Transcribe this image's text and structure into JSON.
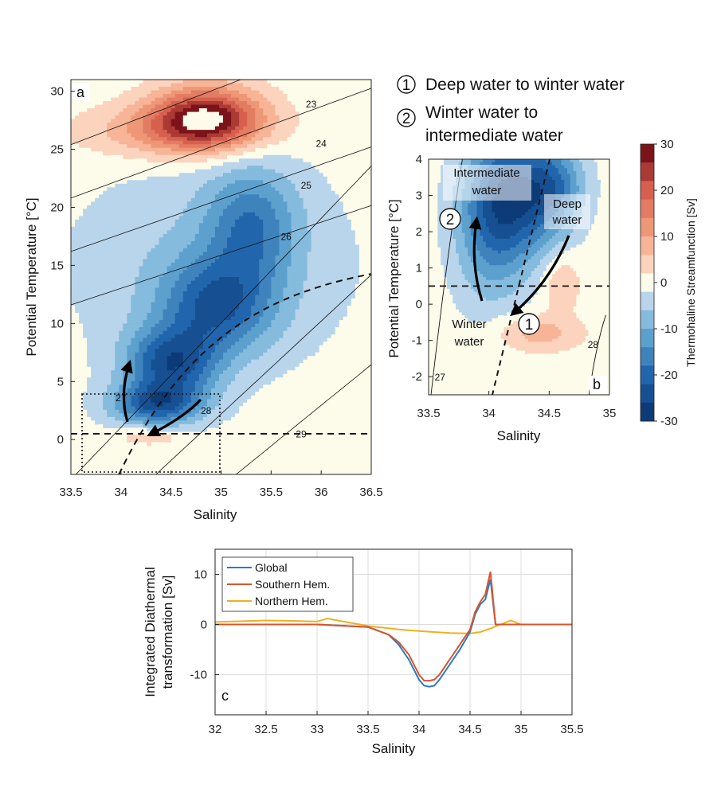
{
  "steps": [
    {
      "num": "1",
      "text": "Deep water to winter water"
    },
    {
      "num": "2",
      "text_line1": "Winter water to",
      "text_line2": "intermediate water"
    }
  ],
  "chart_data": [
    {
      "panel": "a",
      "type": "heatmap",
      "xlabel": "Salinity",
      "ylabel": "Potential Temperature [°C]",
      "xlim": [
        33.5,
        36.5
      ],
      "ylim": [
        -3,
        31
      ],
      "xticks": [
        "33.5",
        "34",
        "34.5",
        "35",
        "35.5",
        "36",
        "36.5"
      ],
      "yticks": [
        "0",
        "5",
        "10",
        "15",
        "20",
        "25",
        "30"
      ],
      "density_contours": [
        "23",
        "24",
        "25",
        "26",
        "27",
        "28",
        "29"
      ],
      "reference_line_temperature": 0.5,
      "blobs": [
        {
          "s": 34.85,
          "t": 27.8,
          "rs": 0.55,
          "rt": 2.6,
          "v": 28
        },
        {
          "s": 34.5,
          "t": 26.5,
          "rs": 0.9,
          "rt": 2.2,
          "v": 10
        },
        {
          "s": 35.3,
          "t": 18.5,
          "rs": 0.45,
          "rt": 5.0,
          "v": -14
        },
        {
          "s": 34.95,
          "t": 11.5,
          "rs": 0.55,
          "rt": 4.0,
          "v": -18
        },
        {
          "s": 34.5,
          "t": 6.5,
          "rs": 0.45,
          "rt": 3.0,
          "v": -22
        },
        {
          "s": 34.35,
          "t": 3.0,
          "rs": 0.45,
          "rt": 1.8,
          "v": -20
        },
        {
          "s": 34.9,
          "t": 15.0,
          "rs": 1.4,
          "rt": 9.0,
          "v": -6
        },
        {
          "s": 34.3,
          "t": 0.3,
          "rs": 0.35,
          "rt": 0.8,
          "v": 6
        }
      ]
    },
    {
      "panel": "b",
      "type": "heatmap",
      "xlabel": "Salinity",
      "ylabel": "Potential Temperature [°C]",
      "xlim": [
        33.5,
        35
      ],
      "ylim": [
        -2.5,
        4
      ],
      "xticks": [
        "33.5",
        "34",
        "34.5",
        "35"
      ],
      "yticks": [
        "-2",
        "-1",
        "0",
        "1",
        "2",
        "3",
        "4"
      ],
      "density_contours": [
        "27",
        "28"
      ],
      "reference_line_temperature": 0.5,
      "annotations": [
        "Intermediate",
        "water",
        "Deep",
        "water",
        "Winter",
        "water"
      ],
      "blobs": [
        {
          "s": 34.2,
          "t": 3.0,
          "rs": 0.35,
          "rt": 1.8,
          "v": -22
        },
        {
          "s": 34.55,
          "t": 3.2,
          "rs": 0.25,
          "rt": 1.2,
          "v": -14
        },
        {
          "s": 34.0,
          "t": 2.0,
          "rs": 0.3,
          "rt": 2.2,
          "v": -10
        },
        {
          "s": 34.4,
          "t": -0.8,
          "rs": 0.35,
          "rt": 0.5,
          "v": 8
        },
        {
          "s": 34.6,
          "t": 0.6,
          "rs": 0.15,
          "rt": 0.8,
          "v": 6
        }
      ]
    },
    {
      "panel": "c",
      "type": "line",
      "xlabel": "Salinity",
      "ylabel": "Integrated Diathermal transformation [Sv]",
      "ylabel_line1": "Integrated Diathermal",
      "ylabel_line2": "transformation [Sv]",
      "xlim": [
        32,
        35.5
      ],
      "ylim": [
        -18,
        15
      ],
      "xticks": [
        "32",
        "32.5",
        "33",
        "33.5",
        "34",
        "34.5",
        "35",
        "35.5"
      ],
      "yticks": [
        "-10",
        "0",
        "10"
      ],
      "legend_position": "top-left",
      "grid": true,
      "series": [
        {
          "name": "Global",
          "color": "#2a7bc2",
          "x": [
            32.0,
            33.0,
            33.5,
            33.7,
            33.8,
            33.9,
            34.0,
            34.05,
            34.1,
            34.15,
            34.2,
            34.3,
            34.4,
            34.5,
            34.55,
            34.6,
            34.65,
            34.7,
            34.75,
            34.9,
            35.5
          ],
          "y": [
            0,
            0,
            -0.5,
            -2,
            -4,
            -7,
            -11,
            -12.2,
            -12.4,
            -12.2,
            -11,
            -8,
            -5,
            -1.5,
            2,
            4,
            5,
            9,
            0,
            0,
            0
          ]
        },
        {
          "name": "Southern Hem.",
          "color": "#d9542b",
          "x": [
            32.0,
            33.0,
            33.5,
            33.7,
            33.8,
            33.9,
            34.0,
            34.05,
            34.1,
            34.15,
            34.2,
            34.3,
            34.4,
            34.5,
            34.55,
            34.6,
            34.65,
            34.7,
            34.75,
            34.9,
            35.5
          ],
          "y": [
            0,
            0,
            -0.5,
            -2,
            -3.5,
            -6,
            -10,
            -11.2,
            -11.2,
            -11,
            -10,
            -7,
            -4,
            -1,
            2.5,
            4.5,
            6,
            10.5,
            0,
            0,
            0
          ]
        },
        {
          "name": "Northern Hem.",
          "color": "#edb120",
          "x": [
            32.0,
            32.5,
            32.8,
            33.0,
            33.1,
            33.2,
            33.5,
            33.8,
            34.0,
            34.3,
            34.5,
            34.6,
            34.7,
            34.8,
            34.9,
            35.0,
            35.5
          ],
          "y": [
            0.5,
            0.8,
            0.7,
            0.6,
            1.2,
            0.8,
            -0.3,
            -1.0,
            -1.3,
            -1.7,
            -1.8,
            -1.5,
            -0.8,
            0.0,
            0.8,
            0.0,
            0.0
          ]
        }
      ]
    }
  ],
  "colorbar": {
    "label": "Thermohaline Streamfunction [Sv]",
    "ticks": [
      "30",
      "20",
      "10",
      "0",
      "-10",
      "-20",
      "-30"
    ],
    "range": [
      -30,
      30
    ]
  }
}
